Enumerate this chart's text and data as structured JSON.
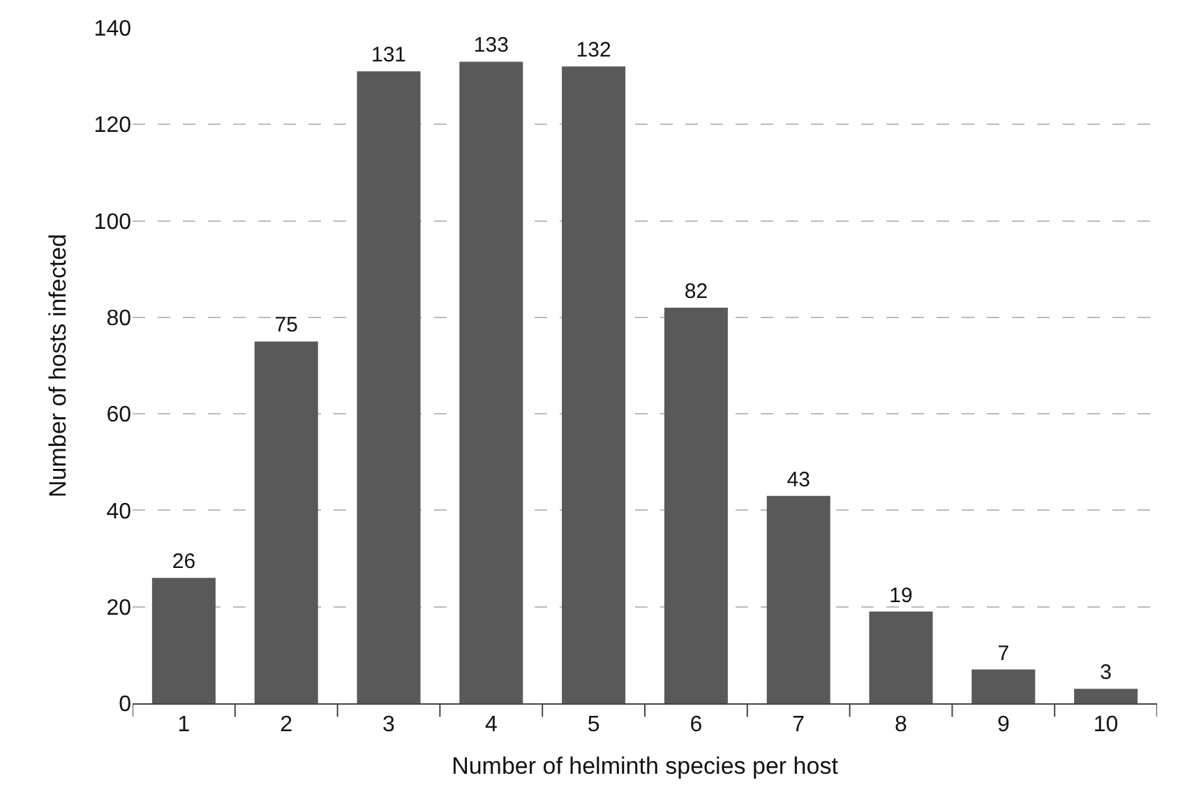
{
  "chart_data": {
    "type": "bar",
    "xlabel": "Number of helminth species per host",
    "ylabel": "Number of hosts infected",
    "categories": [
      "1",
      "2",
      "3",
      "4",
      "5",
      "6",
      "7",
      "8",
      "9",
      "10"
    ],
    "values": [
      26,
      75,
      131,
      133,
      132,
      82,
      43,
      19,
      7,
      3
    ],
    "color": "#595959",
    "ylim": [
      0,
      140
    ],
    "yticks": [
      0,
      20,
      40,
      60,
      80,
      100,
      120,
      140
    ],
    "grid": "y",
    "data_labels": true
  }
}
